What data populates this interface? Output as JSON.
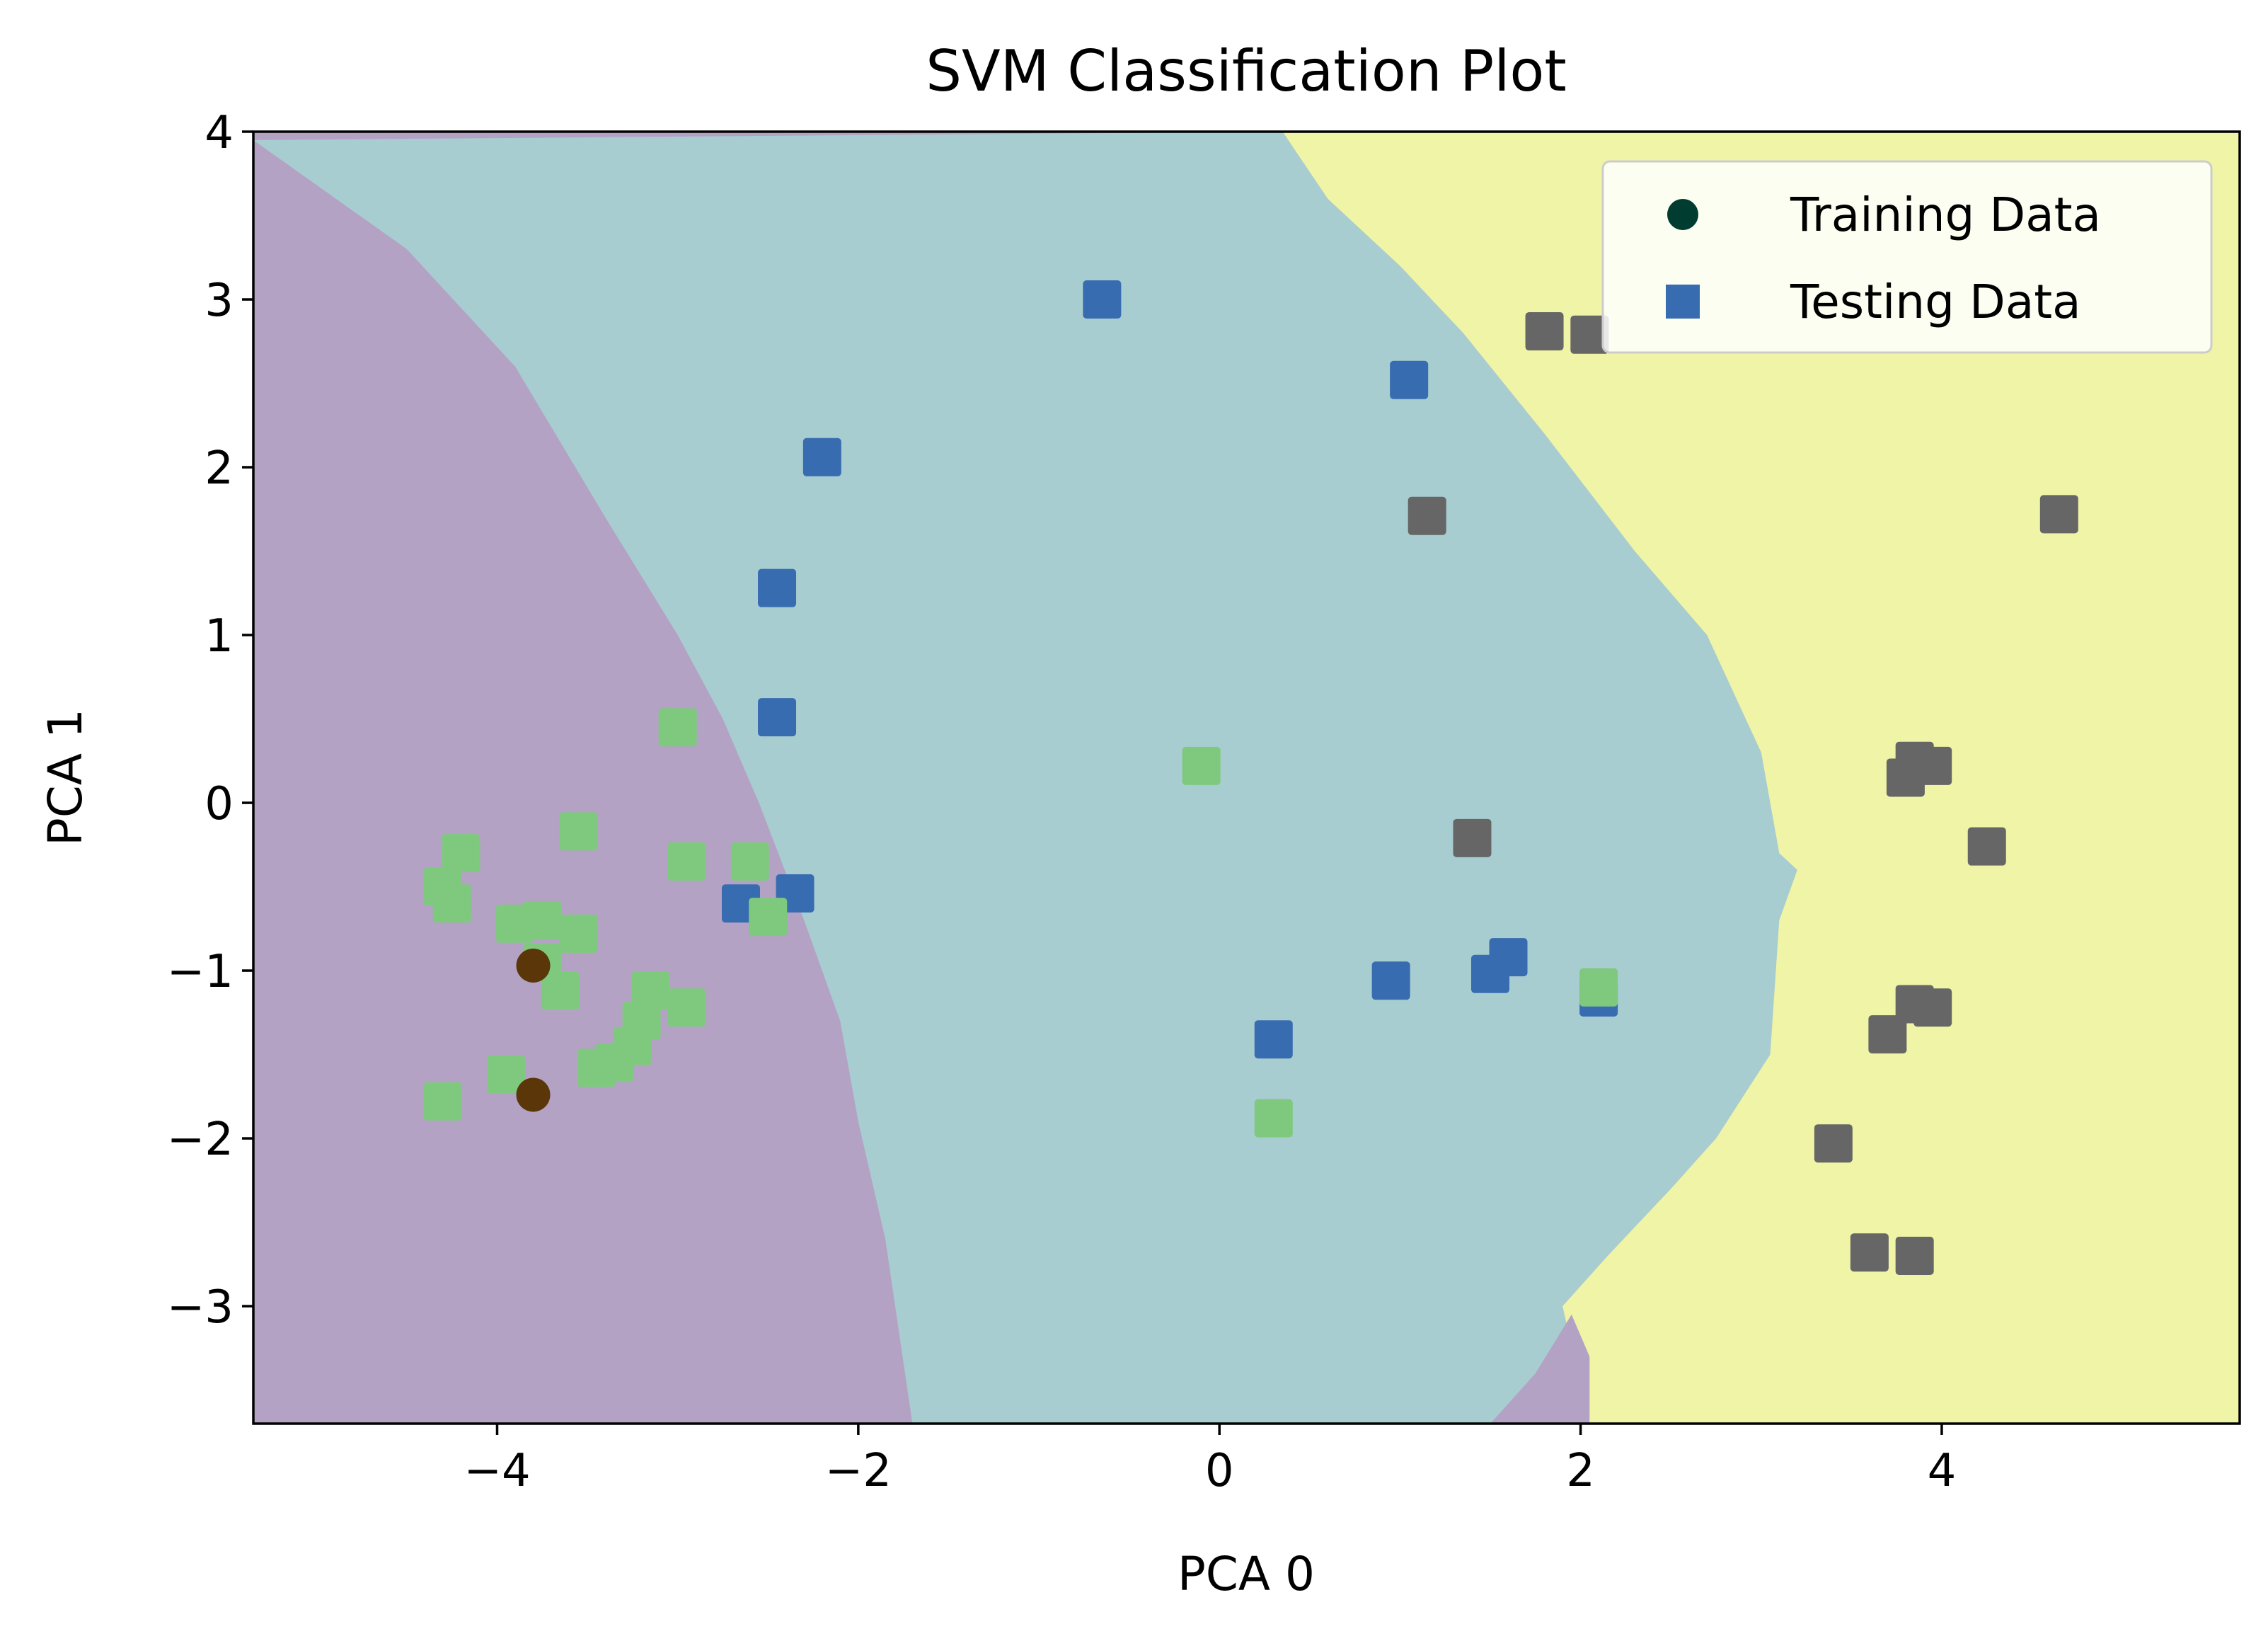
{
  "chart_data": {
    "type": "scatter",
    "title": "SVM Classification Plot",
    "xlabel": "PCA 0",
    "ylabel": "PCA 1",
    "xlim": [
      -5.35,
      5.65
    ],
    "ylim": [
      -3.7,
      4.0
    ],
    "x_ticks": [
      -4,
      -2,
      0,
      2,
      4
    ],
    "x_tick_labels": [
      "−4",
      "−2",
      "0",
      "2",
      "4"
    ],
    "y_ticks": [
      -3,
      -2,
      -1,
      0,
      1,
      2,
      3,
      4
    ],
    "y_tick_labels": [
      "−3",
      "−2",
      "−1",
      "0",
      "1",
      "2",
      "3",
      "4"
    ],
    "grid": false,
    "legend_position": "top-right",
    "legend": [
      {
        "label": "Training Data",
        "marker": "circle",
        "color": "#003c30"
      },
      {
        "label": "Testing Data",
        "marker": "square",
        "color": "#386cb0"
      }
    ],
    "decision_regions": [
      {
        "class": 0,
        "color": "#b4a2c5"
      },
      {
        "class": 1,
        "color": "#a7cdd1"
      },
      {
        "class": 2,
        "color": "#f0f4a6"
      }
    ],
    "region_boundaries": {
      "boundary_0_1": [
        [
          -5.35,
          3.95
        ],
        [
          -4.5,
          3.3
        ],
        [
          -3.9,
          2.6
        ],
        [
          -3.4,
          1.7
        ],
        [
          -3.0,
          1.0
        ],
        [
          -2.75,
          0.5
        ],
        [
          -2.55,
          0.0
        ],
        [
          -2.3,
          -0.7
        ],
        [
          -2.1,
          -1.3
        ],
        [
          -2.0,
          -1.9
        ],
        [
          -1.85,
          -2.6
        ],
        [
          -1.7,
          -3.7
        ]
      ],
      "boundary_1_2": [
        [
          0.35,
          4.0
        ],
        [
          0.6,
          3.6
        ],
        [
          1.0,
          3.2
        ],
        [
          1.35,
          2.8
        ],
        [
          1.8,
          2.2
        ],
        [
          2.3,
          1.5
        ],
        [
          2.7,
          1.0
        ],
        [
          3.0,
          0.3
        ],
        [
          3.1,
          -0.3
        ],
        [
          3.2,
          -0.4
        ],
        [
          3.1,
          -0.7
        ],
        [
          3.05,
          -1.5
        ],
        [
          2.75,
          -2.0
        ],
        [
          2.5,
          -2.3
        ],
        [
          2.15,
          -2.7
        ],
        [
          1.9,
          -3.0
        ],
        [
          2.05,
          -3.7
        ]
      ],
      "boundary_pocket": [
        [
          1.5,
          -3.7
        ],
        [
          1.75,
          -3.4
        ],
        [
          1.95,
          -3.05
        ],
        [
          2.05,
          -3.3
        ],
        [
          2.05,
          -3.7
        ]
      ]
    },
    "series": [
      {
        "name": "Training Data",
        "marker": "circle",
        "points": [
          [
            -3.8,
            -0.97
          ],
          [
            -3.8,
            -1.74
          ]
        ],
        "color": "#5a3608"
      },
      {
        "name": "Testing Data",
        "marker": "square",
        "points": [
          [
            -0.65,
            3.0
          ],
          [
            1.05,
            2.52
          ],
          [
            -2.2,
            2.06
          ],
          [
            -2.45,
            1.28
          ],
          [
            -2.45,
            0.51
          ],
          [
            -2.65,
            -0.6
          ],
          [
            -2.35,
            -0.54
          ],
          [
            0.95,
            -1.06
          ],
          [
            1.5,
            -1.02
          ],
          [
            1.6,
            -0.92
          ],
          [
            2.1,
            -1.16
          ],
          [
            0.3,
            -1.41
          ],
          [
            -3.0,
            0.45
          ],
          [
            -0.1,
            0.22
          ],
          [
            -4.2,
            -0.3
          ],
          [
            -3.55,
            -0.17
          ],
          [
            -4.3,
            -0.5
          ],
          [
            -4.25,
            -0.6
          ],
          [
            -2.95,
            -0.35
          ],
          [
            -2.6,
            -0.35
          ],
          [
            -2.5,
            -0.68
          ],
          [
            -3.9,
            -0.72
          ],
          [
            -3.75,
            -0.7
          ],
          [
            -3.55,
            -0.78
          ],
          [
            -3.75,
            -0.95
          ],
          [
            -3.65,
            -1.12
          ],
          [
            -3.15,
            -1.12
          ],
          [
            -2.95,
            -1.22
          ],
          [
            -3.2,
            -1.3
          ],
          [
            -3.25,
            -1.45
          ],
          [
            -3.35,
            -1.55
          ],
          [
            -3.45,
            -1.58
          ],
          [
            -3.95,
            -1.62
          ],
          [
            -4.3,
            -1.78
          ],
          [
            0.3,
            -1.88
          ],
          [
            2.1,
            -1.1
          ],
          [
            1.8,
            2.81
          ],
          [
            2.05,
            2.79
          ],
          [
            1.15,
            1.71
          ],
          [
            4.65,
            1.72
          ],
          [
            3.85,
            0.25
          ],
          [
            3.95,
            0.22
          ],
          [
            3.8,
            0.15
          ],
          [
            4.25,
            -0.26
          ],
          [
            1.4,
            -0.21
          ],
          [
            3.85,
            -1.2
          ],
          [
            3.95,
            -1.22
          ],
          [
            3.7,
            -1.38
          ],
          [
            3.4,
            -2.03
          ],
          [
            3.6,
            -2.68
          ],
          [
            3.85,
            -2.7
          ]
        ],
        "point_colors": [
          "#386cb0",
          "#386cb0",
          "#386cb0",
          "#386cb0",
          "#386cb0",
          "#386cb0",
          "#386cb0",
          "#386cb0",
          "#386cb0",
          "#386cb0",
          "#386cb0",
          "#386cb0",
          "#7fc97f",
          "#7fc97f",
          "#7fc97f",
          "#7fc97f",
          "#7fc97f",
          "#7fc97f",
          "#7fc97f",
          "#7fc97f",
          "#7fc97f",
          "#7fc97f",
          "#7fc97f",
          "#7fc97f",
          "#7fc97f",
          "#7fc97f",
          "#7fc97f",
          "#7fc97f",
          "#7fc97f",
          "#7fc97f",
          "#7fc97f",
          "#7fc97f",
          "#7fc97f",
          "#7fc97f",
          "#7fc97f",
          "#7fc97f",
          "#666666",
          "#666666",
          "#666666",
          "#666666",
          "#666666",
          "#666666",
          "#666666",
          "#666666",
          "#666666",
          "#666666",
          "#666666",
          "#666666",
          "#666666",
          "#666666",
          "#666666"
        ]
      }
    ]
  }
}
